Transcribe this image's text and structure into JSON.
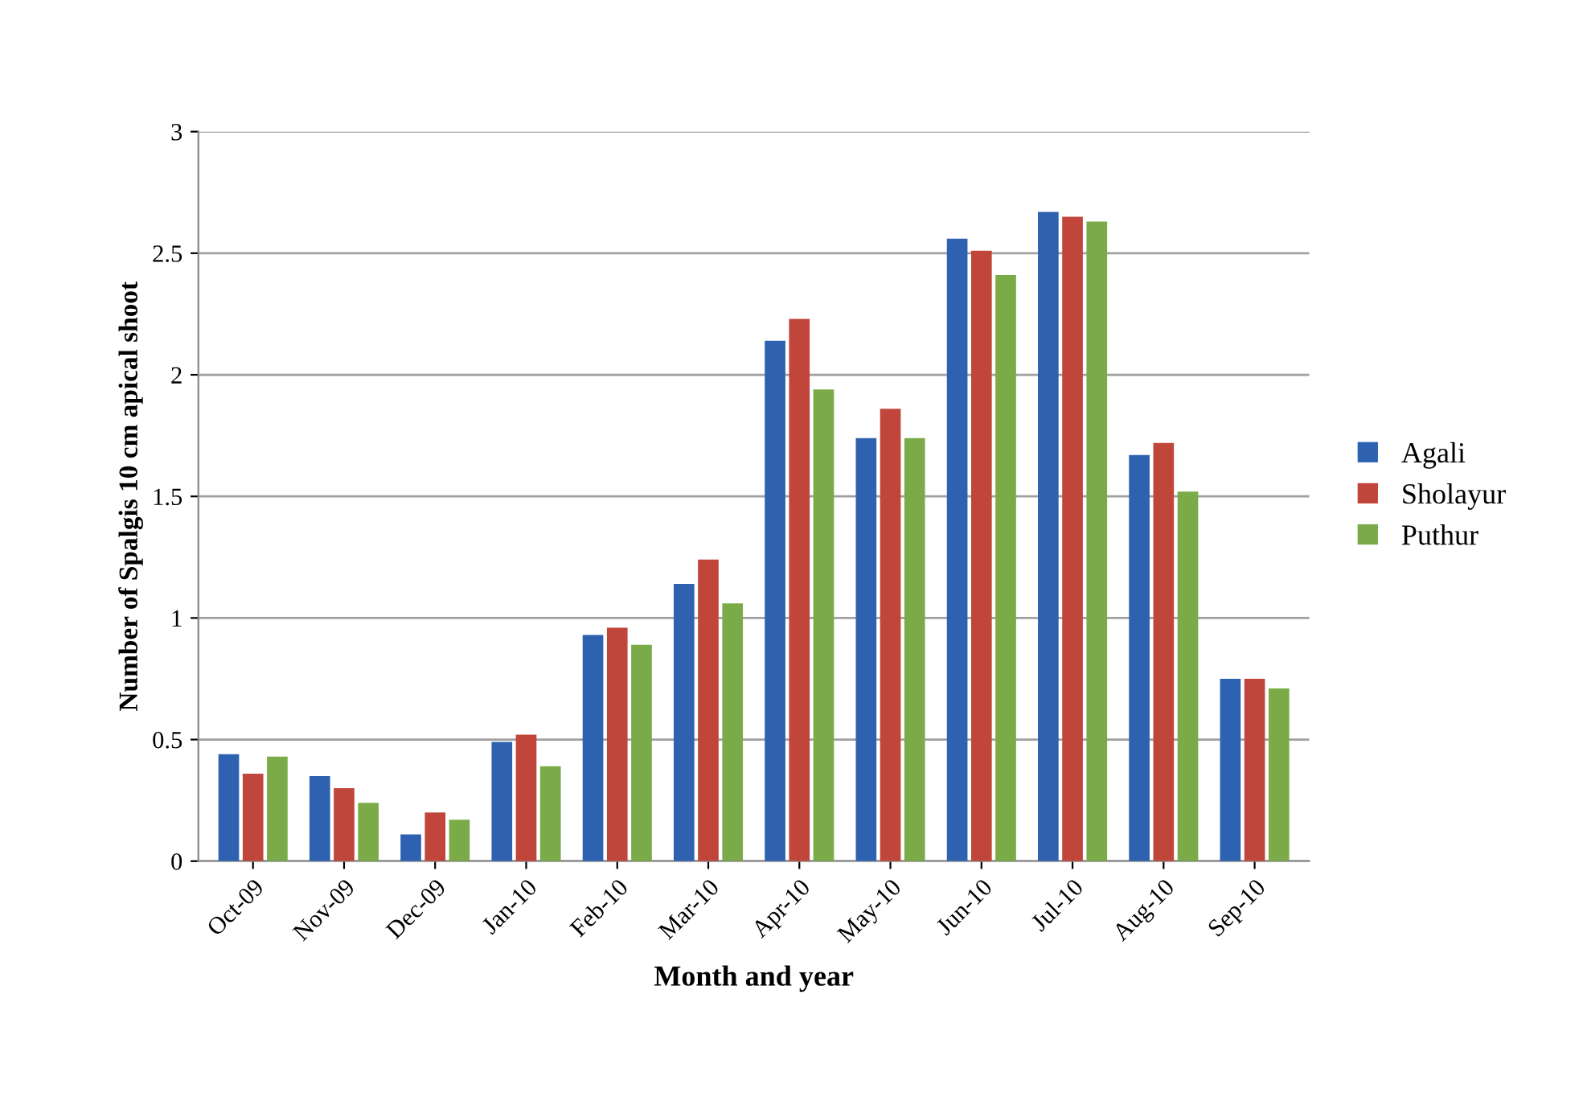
{
  "chart_data": {
    "type": "bar",
    "xlabel": "Month and year",
    "ylabel": "Number of Spalgis 10 cm apical shoot",
    "categories": [
      "Oct-09",
      "Nov-09",
      "Dec-09",
      "Jan-10",
      "Feb-10",
      "Mar-10",
      "Apr-10",
      "May-10",
      "Jun-10",
      "Jul-10",
      "Aug-10",
      "Sep-10"
    ],
    "series": [
      {
        "name": "Agali",
        "color": "#2e62b0",
        "values": [
          0.44,
          0.35,
          0.11,
          0.49,
          0.93,
          1.14,
          2.14,
          1.74,
          2.56,
          2.67,
          1.67,
          0.75
        ]
      },
      {
        "name": "Sholayur",
        "color": "#c0463c",
        "values": [
          0.36,
          0.3,
          0.2,
          0.52,
          0.96,
          1.24,
          2.23,
          1.86,
          2.51,
          2.65,
          1.72,
          0.75
        ]
      },
      {
        "name": "Puthur",
        "color": "#7aab48",
        "values": [
          0.43,
          0.24,
          0.17,
          0.39,
          0.89,
          1.06,
          1.94,
          1.74,
          2.41,
          2.63,
          1.52,
          0.71
        ]
      }
    ],
    "ylim": [
      0,
      3
    ],
    "yticks": [
      0,
      0.5,
      1,
      1.5,
      2,
      2.5,
      3
    ],
    "grid": "y",
    "legend": "right"
  }
}
